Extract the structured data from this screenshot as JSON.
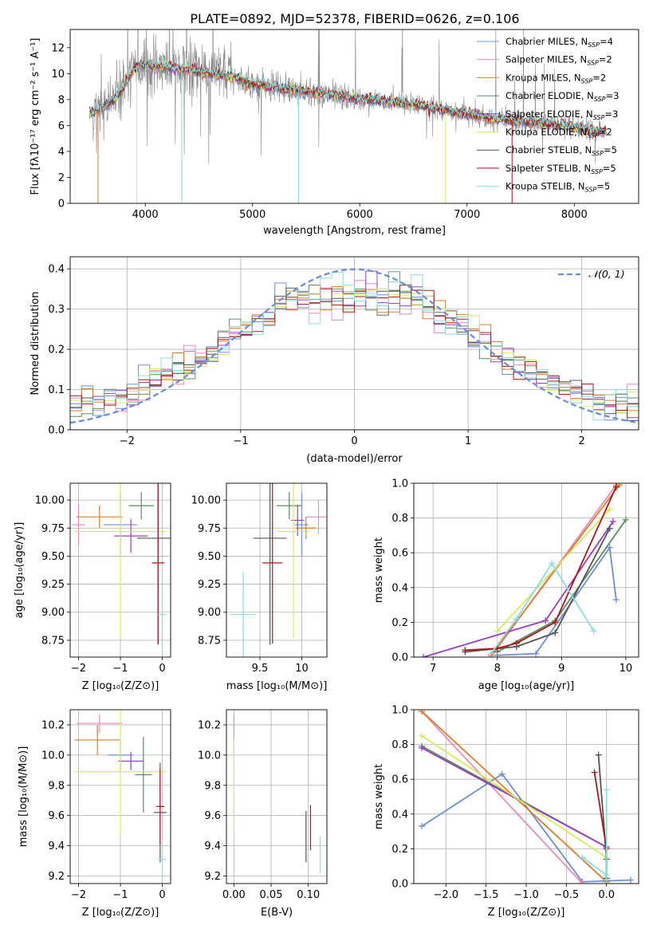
{
  "figure_title": "PLATE=0892, MJD=52378, FIBERID=0626, z=0.106",
  "colors": {
    "Chabrier MILES": "#6a8fd8",
    "Salpeter MILES": "#e88bbf",
    "Kroupa MILES": "#e07b2a",
    "Chabrier ELODIE": "#5d8c5d",
    "Salpeter ELODIE": "#9a3dc0",
    "Kroupa ELODIE": "#d4ec5c",
    "Chabrier STELIB": "#555555",
    "Salpeter STELIB": "#aa1818",
    "Kroupa STELIB": "#88dede",
    "data": "#888888",
    "normal": "#6a8fd8"
  },
  "chart_data": [
    {
      "id": "spectrum",
      "type": "line",
      "title": "PLATE=0892, MJD=52378, FIBERID=0626, z=0.106",
      "xlabel": "wavelength [Angstrom, rest frame]",
      "ylabel": "Flux [fλ10⁻¹⁷ erg cm⁻² s⁻¹ A⁻¹]",
      "xlim": [
        3300,
        8600
      ],
      "ylim": [
        0,
        13.4
      ],
      "xticks": [
        4000,
        5000,
        6000,
        7000,
        8000
      ],
      "yticks": [
        0,
        2,
        4,
        6,
        8,
        10,
        12
      ],
      "grid": false,
      "legend_position": "top-right",
      "legend": [
        "Chabrier MILES, N_SSP=4",
        "Salpeter MILES, N_SSP=2",
        "Kroupa MILES, N_SSP=2",
        "Chabrier ELODIE, N_SSP=3",
        "Salpeter ELODIE, N_SSP=3",
        "Kroupa ELODIE, N_SSP=2",
        "Chabrier STELIB, N_SSP=5",
        "Salpeter STELIB, N_SSP=5",
        "Kroupa STELIB, N_SSP=5"
      ],
      "legend_labels": [
        {
          "model": "Chabrier MILES",
          "n": "4"
        },
        {
          "model": "Salpeter MILES",
          "n": "2"
        },
        {
          "model": "Kroupa MILES",
          "n": "2"
        },
        {
          "model": "Chabrier ELODIE",
          "n": "3"
        },
        {
          "model": "Salpeter ELODIE",
          "n": "3"
        },
        {
          "model": "Kroupa ELODIE",
          "n": "2"
        },
        {
          "model": "Chabrier STELIB",
          "n": "5"
        },
        {
          "model": "Salpeter STELIB",
          "n": "5"
        },
        {
          "model": "Kroupa STELIB",
          "n": "5"
        }
      ],
      "continuum_model": {
        "x": [
          3500,
          3600,
          3750,
          3900,
          4000,
          4200,
          4400,
          4600,
          4800,
          5000,
          5200,
          5500,
          5800,
          6000,
          6300,
          6600,
          6900,
          7200,
          7500,
          7800,
          8000,
          8300
        ],
        "y": [
          7.0,
          7.3,
          8.3,
          10.4,
          10.6,
          10.5,
          10.3,
          10.0,
          9.8,
          9.2,
          8.9,
          8.6,
          8.3,
          8.0,
          7.8,
          7.5,
          7.0,
          6.6,
          6.3,
          6.1,
          5.8,
          5.5
        ]
      }
    },
    {
      "id": "residuals",
      "type": "step",
      "xlabel": "(data-model)/error",
      "ylabel": "Normed distribution",
      "xlim": [
        -2.5,
        2.5
      ],
      "ylim": [
        0,
        0.43
      ],
      "xticks": [
        -2,
        -1,
        0,
        1,
        2
      ],
      "yticks": [
        0.0,
        0.1,
        0.2,
        0.3,
        0.4
      ],
      "grid": true,
      "legend_position": "top-right",
      "legend": [
        "𝒩(0, 1)"
      ],
      "normal_curve": {
        "mean": 0,
        "sigma": 1
      }
    },
    {
      "id": "age-vs-Z",
      "type": "errorbar",
      "xlabel": "Z [log₁₀(Z/Z⊙)]",
      "ylabel": "age  [log₁₀(age/yr)]",
      "xlim": [
        -2.2,
        0.2
      ],
      "ylim": [
        8.6,
        10.15
      ],
      "xticks": [
        -2,
        -1,
        0
      ],
      "yticks": [
        8.75,
        9.0,
        9.25,
        9.5,
        9.75,
        10.0
      ],
      "grid": true,
      "points": [
        {
          "model": "Chabrier MILES",
          "x": -1.0,
          "xerr": 0.4,
          "y": 9.78,
          "yerr": 0.28
        },
        {
          "model": "Salpeter MILES",
          "x": -2.0,
          "xerr": 0.15,
          "y": 9.78,
          "yerr": 0.18
        },
        {
          "model": "Kroupa MILES",
          "x": -1.5,
          "xerr": 0.55,
          "y": 9.85,
          "yerr": 0.1
        },
        {
          "model": "Chabrier ELODIE",
          "x": -0.5,
          "xerr": 0.3,
          "y": 9.95,
          "yerr": 0.12
        },
        {
          "model": "Salpeter ELODIE",
          "x": -0.75,
          "xerr": 0.4,
          "y": 9.68,
          "yerr": 0.15
        },
        {
          "model": "Kroupa ELODIE",
          "x": -1.0,
          "xerr": 1.1,
          "y": 9.72,
          "yerr": 0.95
        },
        {
          "model": "Chabrier STELIB",
          "x": -0.1,
          "xerr": 0.5,
          "y": 9.66,
          "yerr": 0.95
        },
        {
          "model": "Salpeter STELIB",
          "x": -0.1,
          "xerr": 0.15,
          "y": 9.44,
          "yerr": 0.72
        },
        {
          "model": "Kroupa STELIB",
          "x": 0.0,
          "xerr": 0.1,
          "y": 8.98,
          "yerr": 0.38
        }
      ]
    },
    {
      "id": "age-vs-mass",
      "type": "errorbar",
      "xlabel": "mass [log₁₀(M/M⊙)]",
      "ylabel": "",
      "xlim": [
        9.1,
        10.3
      ],
      "ylim": [
        8.6,
        10.15
      ],
      "xticks": [
        9.5,
        10.0
      ],
      "yticks": [
        8.75,
        9.0,
        9.25,
        9.5,
        9.75,
        10.0
      ],
      "grid": true,
      "points": [
        {
          "model": "Chabrier MILES",
          "x": 10.0,
          "xerr": 0.08,
          "y": 9.78,
          "yerr": 0.28
        },
        {
          "model": "Salpeter MILES",
          "x": 10.2,
          "xerr": 0.15,
          "y": 9.85,
          "yerr": 0.15
        },
        {
          "model": "Kroupa MILES",
          "x": 10.05,
          "xerr": 0.12,
          "y": 9.75,
          "yerr": 0.1
        },
        {
          "model": "Chabrier ELODIE",
          "x": 9.85,
          "xerr": 0.15,
          "y": 9.95,
          "yerr": 0.12
        },
        {
          "model": "Salpeter ELODIE",
          "x": 9.95,
          "xerr": 0.08,
          "y": 9.82,
          "yerr": 0.14
        },
        {
          "model": "Kroupa ELODIE",
          "x": 9.9,
          "xerr": 0.2,
          "y": 9.72,
          "yerr": 0.95
        },
        {
          "model": "Chabrier STELIB",
          "x": 9.62,
          "xerr": 0.2,
          "y": 9.66,
          "yerr": 0.95
        },
        {
          "model": "Salpeter STELIB",
          "x": 9.65,
          "xerr": 0.12,
          "y": 9.44,
          "yerr": 0.72
        },
        {
          "model": "Kroupa STELIB",
          "x": 9.3,
          "xerr": 0.15,
          "y": 8.98,
          "yerr": 0.38
        }
      ]
    },
    {
      "id": "weight-vs-age",
      "type": "line",
      "xlabel": "age  [log₁₀(age/yr)]",
      "ylabel": "mass weight",
      "xlim": [
        6.7,
        10.2
      ],
      "ylim": [
        0,
        1.0
      ],
      "xticks": [
        7,
        8,
        9,
        10
      ],
      "yticks": [
        0.0,
        0.2,
        0.4,
        0.6,
        0.8,
        1.0
      ],
      "grid": true,
      "series": [
        {
          "model": "Chabrier MILES",
          "x": [
            8.0,
            8.6,
            9.75,
            9.85
          ],
          "y": [
            0.01,
            0.02,
            0.63,
            0.33
          ]
        },
        {
          "model": "Salpeter MILES",
          "x": [
            7.9,
            9.85
          ],
          "y": [
            0.0,
            0.99
          ]
        },
        {
          "model": "Kroupa MILES",
          "x": [
            7.9,
            9.9
          ],
          "y": [
            0.01,
            0.99
          ]
        },
        {
          "model": "Chabrier ELODIE",
          "x": [
            8.0,
            8.9,
            10.0
          ],
          "y": [
            0.03,
            0.21,
            0.79
          ]
        },
        {
          "model": "Salpeter ELODIE",
          "x": [
            6.85,
            8.75,
            9.8
          ],
          "y": [
            0.0,
            0.21,
            0.78
          ]
        },
        {
          "model": "Kroupa ELODIE",
          "x": [
            8.0,
            9.75
          ],
          "y": [
            0.15,
            0.85
          ]
        },
        {
          "model": "Chabrier STELIB",
          "x": [
            7.5,
            8.3,
            8.9,
            9.75
          ],
          "y": [
            0.03,
            0.06,
            0.14,
            0.74
          ]
        },
        {
          "model": "Salpeter STELIB",
          "x": [
            7.5,
            8.0,
            8.3,
            8.9,
            9.85
          ],
          "y": [
            0.04,
            0.05,
            0.08,
            0.2,
            0.98
          ]
        },
        {
          "model": "Kroupa STELIB",
          "x": [
            7.9,
            8.3,
            8.85,
            9.5
          ],
          "y": [
            0.02,
            0.22,
            0.54,
            0.15
          ]
        }
      ]
    },
    {
      "id": "mass-vs-Z",
      "type": "errorbar",
      "xlabel": "Z [log₁₀(Z/Z⊙)]",
      "ylabel": "mass [log₁₀(M/M⊙)]",
      "xlim": [
        -2.2,
        0.2
      ],
      "ylim": [
        9.15,
        10.3
      ],
      "xticks": [
        -2,
        -1,
        0
      ],
      "yticks": [
        9.2,
        9.4,
        9.6,
        9.8,
        10.0,
        10.2
      ],
      "grid": true,
      "points": [
        {
          "model": "Chabrier MILES",
          "x": -1.0,
          "xerr": 0.3,
          "y": 10.0,
          "yerr": 0.1
        },
        {
          "model": "Salpeter MILES",
          "x": -1.5,
          "xerr": 0.55,
          "y": 10.21,
          "yerr": 0.06
        },
        {
          "model": "Kroupa MILES",
          "x": -1.55,
          "xerr": 0.55,
          "y": 10.1,
          "yerr": 0.1
        },
        {
          "model": "Chabrier ELODIE",
          "x": -0.45,
          "xerr": 0.2,
          "y": 9.87,
          "yerr": 0.25
        },
        {
          "model": "Salpeter ELODIE",
          "x": -0.75,
          "xerr": 0.3,
          "y": 9.96,
          "yerr": 0.06
        },
        {
          "model": "Kroupa ELODIE",
          "x": -1.0,
          "xerr": 1.1,
          "y": 9.89,
          "yerr": 0.42
        },
        {
          "model": "Chabrier STELIB",
          "x": -0.05,
          "xerr": 0.15,
          "y": 9.62,
          "yerr": 0.33
        },
        {
          "model": "Salpeter STELIB",
          "x": -0.05,
          "xerr": 0.1,
          "y": 9.66,
          "yerr": 0.25
        },
        {
          "model": "Kroupa STELIB",
          "x": 0.0,
          "xerr": 0.1,
          "y": 9.31,
          "yerr": 0.16
        }
      ]
    },
    {
      "id": "mass-vs-EBV",
      "type": "errorbar",
      "xlabel": "E(B-V)",
      "ylabel": "",
      "xlim": [
        -0.01,
        0.125
      ],
      "ylim": [
        9.15,
        10.3
      ],
      "xticks": [
        0.0,
        0.05,
        0.1
      ],
      "yticks": [
        9.2,
        9.4,
        9.6,
        9.8,
        10.0,
        10.2
      ],
      "xtick_labels": [
        "0.00",
        "0.05",
        "0.10"
      ],
      "grid": true,
      "points": [
        {
          "model": "Salpeter MILES",
          "x": 0.0,
          "xerr": 0.0,
          "y": 10.15,
          "yerr": 0.12
        },
        {
          "model": "Kroupa ELODIE",
          "x": 0.0,
          "xerr": 0.0,
          "y": 9.8,
          "yerr": 0.32
        },
        {
          "model": "Chabrier STELIB",
          "x": 0.097,
          "xerr": 0.0,
          "y": 9.46,
          "yerr": 0.17
        },
        {
          "model": "Salpeter STELIB",
          "x": 0.103,
          "xerr": 0.0,
          "y": 9.52,
          "yerr": 0.15
        },
        {
          "model": "Kroupa STELIB",
          "x": 0.116,
          "xerr": 0.0,
          "y": 9.34,
          "yerr": 0.12
        }
      ]
    },
    {
      "id": "weight-vs-Z",
      "type": "line",
      "xlabel": "Z [log₁₀(Z/Z⊙)]",
      "ylabel": "mass weight",
      "xlim": [
        -2.4,
        0.4
      ],
      "ylim": [
        0,
        1.0
      ],
      "xticks": [
        -2.0,
        -1.5,
        -1.0,
        -0.5,
        0.0
      ],
      "yticks": [
        0.0,
        0.2,
        0.4,
        0.6,
        0.8,
        1.0
      ],
      "xtick_labels": [
        "−2.0",
        "−1.5",
        "−1.0",
        "−0.5",
        "0.0"
      ],
      "grid": true,
      "series": [
        {
          "model": "Chabrier MILES",
          "x": [
            -2.3,
            -1.3,
            -0.3,
            0.3
          ],
          "y": [
            0.33,
            0.63,
            0.01,
            0.02
          ]
        },
        {
          "model": "Salpeter MILES",
          "x": [
            -2.3,
            -0.3
          ],
          "y": [
            0.99,
            0.0
          ]
        },
        {
          "model": "Kroupa MILES",
          "x": [
            -2.3,
            0.0
          ],
          "y": [
            0.99,
            0.01
          ]
        },
        {
          "model": "Chabrier ELODIE",
          "x": [
            -2.3,
            0.0
          ],
          "y": [
            0.79,
            0.21
          ]
        },
        {
          "model": "Salpeter ELODIE",
          "x": [
            -2.3,
            0.0
          ],
          "y": [
            0.78,
            0.21
          ]
        },
        {
          "model": "Kroupa ELODIE",
          "x": [
            -2.3,
            0.0
          ],
          "y": [
            0.85,
            0.15
          ]
        },
        {
          "model": "Chabrier STELIB",
          "x": [
            -0.1,
            0.0,
            0.0
          ],
          "y": [
            0.74,
            0.14,
            0.03
          ]
        },
        {
          "model": "Salpeter STELIB",
          "x": [
            -0.15,
            0.0,
            0.0
          ],
          "y": [
            0.64,
            0.2,
            0.02
          ]
        },
        {
          "model": "Kroupa STELIB",
          "x": [
            -0.3,
            0.0,
            0.0,
            0.0
          ],
          "y": [
            0.15,
            0.05,
            0.54,
            0.02
          ]
        }
      ]
    }
  ]
}
